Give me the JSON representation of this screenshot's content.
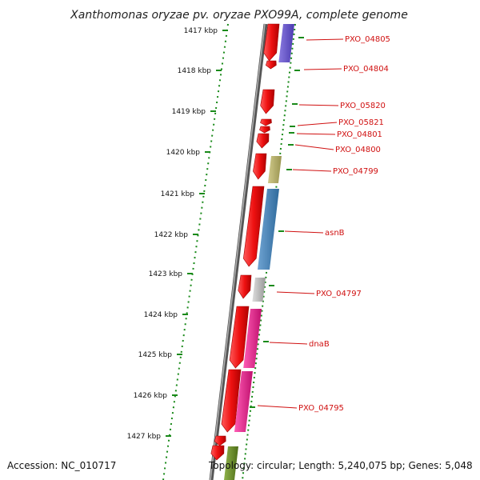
{
  "title": "Xanthomonas oryzae pv. oryzae PXO99A, complete genome",
  "footer": {
    "accession": "Accession: NC_010717",
    "topology": "Topology: circular; Length: 5,240,075 bp; Genes: 5,048"
  },
  "kbp_ticks": [
    "1417 kbp",
    "1418 kbp",
    "1419 kbp",
    "1420 kbp",
    "1421 kbp",
    "1422 kbp",
    "1423 kbp",
    "1424 kbp",
    "1425 kbp",
    "1426 kbp",
    "1427 kbp"
  ],
  "gene_labels": [
    "PXO_04805",
    "PXO_04804",
    "PXO_05820",
    "PXO_05821",
    "PXO_04801",
    "PXO_04800",
    "PXO_04799",
    "asnB",
    "PXO_04797",
    "dnaB",
    "PXO_04795"
  ],
  "colors": {
    "arrow_red": "#ee1111",
    "ruler_green": "#1a8a1a",
    "label_red": "#d01010",
    "purple": "#6a5acd",
    "khaki": "#b5b06a",
    "steelblue": "#4682b4",
    "gray": "#b8b8b8",
    "magenta": "#e0208f",
    "olive": "#6b8e23"
  }
}
